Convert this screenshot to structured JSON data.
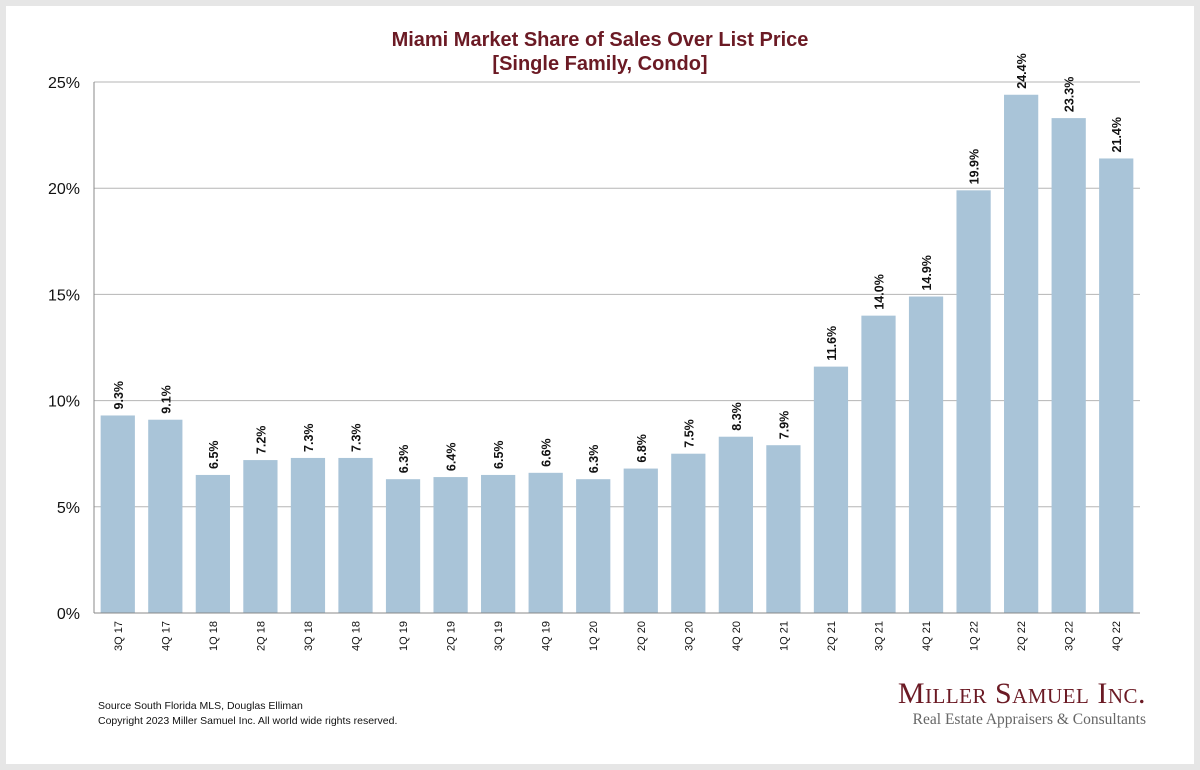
{
  "title_line1": "Miami Market Share of Sales Over List Price",
  "title_line2": "[Single Family, Condo]",
  "footer": {
    "source": "Source South Florida MLS, Douglas Elliman",
    "copyright": "Copyright 2023 Miller Samuel Inc.  All world wide rights reserved."
  },
  "logo": {
    "name": "Miller Samuel Inc.",
    "tagline": "Real Estate Appraisers & Consultants",
    "color": "#6b1a24"
  },
  "chart_data": {
    "type": "bar",
    "categories": [
      "3Q 17",
      "4Q 17",
      "1Q 18",
      "2Q 18",
      "3Q 18",
      "4Q 18",
      "1Q 19",
      "2Q 19",
      "3Q 19",
      "4Q 19",
      "1Q 20",
      "2Q 20",
      "3Q 20",
      "4Q 20",
      "1Q 21",
      "2Q 21",
      "3Q 21",
      "4Q 21",
      "1Q 22",
      "2Q 22",
      "3Q 22",
      "4Q 22"
    ],
    "values": [
      9.3,
      9.1,
      6.5,
      7.2,
      7.3,
      7.3,
      6.3,
      6.4,
      6.5,
      6.6,
      6.3,
      6.8,
      7.5,
      8.3,
      7.9,
      11.6,
      14.0,
      14.9,
      19.9,
      24.4,
      23.3,
      21.4
    ],
    "data_labels": [
      "9.3%",
      "9.1%",
      "6.5%",
      "7.2%",
      "7.3%",
      "7.3%",
      "6.3%",
      "6.4%",
      "6.5%",
      "6.6%",
      "6.3%",
      "6.8%",
      "7.5%",
      "8.3%",
      "7.9%",
      "11.6%",
      "14.0%",
      "14.9%",
      "19.9%",
      "24.4%",
      "23.3%",
      "21.4%"
    ],
    "y_ticks": [
      0,
      5,
      10,
      15,
      20,
      25
    ],
    "y_tick_labels": [
      "0%",
      "5%",
      "10%",
      "15%",
      "20%",
      "25%"
    ],
    "ylim": [
      0,
      25
    ],
    "grid": true,
    "bar_color": "#a9c4d8",
    "title_color": "#6b1a24"
  }
}
